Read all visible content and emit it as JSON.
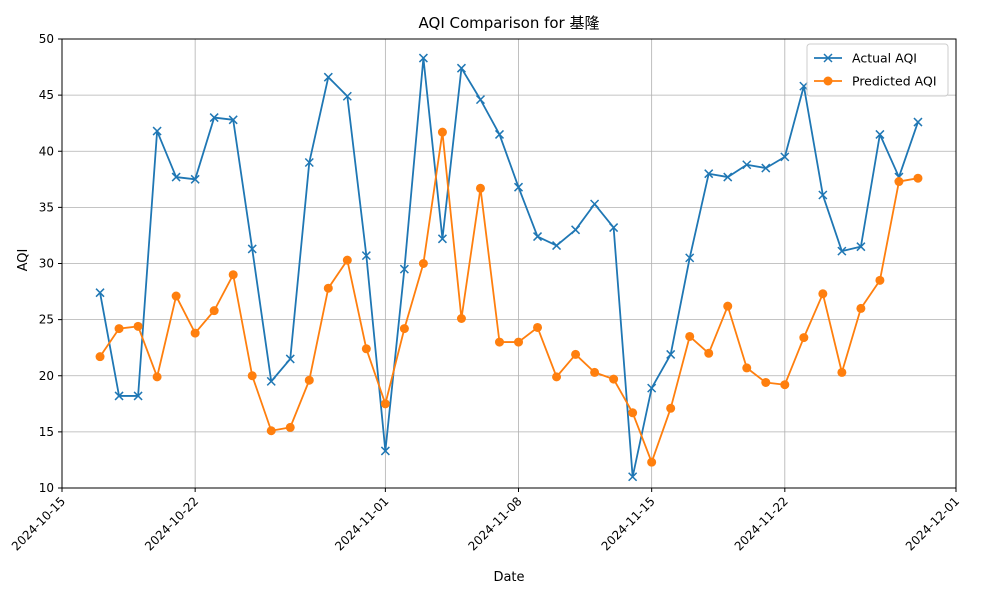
{
  "chart_data": {
    "type": "line",
    "title": "AQI Comparison for 基隆",
    "xlabel": "Date",
    "ylabel": "AQI",
    "xlim": [
      "2024-10-15",
      "2024-12-01"
    ],
    "ylim": [
      10,
      50
    ],
    "x_ticks": [
      "2024-10-15",
      "2024-10-22",
      "2024-11-01",
      "2024-11-08",
      "2024-11-15",
      "2024-11-22",
      "2024-12-01"
    ],
    "y_ticks": [
      10,
      15,
      20,
      25,
      30,
      35,
      40,
      45,
      50
    ],
    "grid": true,
    "legend_position": "upper right",
    "x": [
      "2024-10-17",
      "2024-10-18",
      "2024-10-19",
      "2024-10-20",
      "2024-10-21",
      "2024-10-22",
      "2024-10-23",
      "2024-10-24",
      "2024-10-25",
      "2024-10-26",
      "2024-10-27",
      "2024-10-28",
      "2024-10-29",
      "2024-10-30",
      "2024-10-31",
      "2024-11-01",
      "2024-11-02",
      "2024-11-03",
      "2024-11-04",
      "2024-11-05",
      "2024-11-06",
      "2024-11-07",
      "2024-11-08",
      "2024-11-09",
      "2024-11-10",
      "2024-11-11",
      "2024-11-12",
      "2024-11-13",
      "2024-11-14",
      "2024-11-15",
      "2024-11-16",
      "2024-11-17",
      "2024-11-18",
      "2024-11-19",
      "2024-11-20",
      "2024-11-21",
      "2024-11-22",
      "2024-11-23",
      "2024-11-24",
      "2024-11-25",
      "2024-11-26",
      "2024-11-27",
      "2024-11-28",
      "2024-11-29"
    ],
    "series": [
      {
        "name": "Actual AQI",
        "color": "#1f77b4",
        "marker": "x",
        "values": [
          27.4,
          18.2,
          18.2,
          41.8,
          37.7,
          37.5,
          43.0,
          42.8,
          31.3,
          19.5,
          21.5,
          39.0,
          46.6,
          44.9,
          30.7,
          13.3,
          29.5,
          48.3,
          32.2,
          47.4,
          44.6,
          41.5,
          36.8,
          32.4,
          31.6,
          33.0,
          35.3,
          33.2,
          11.0,
          18.9,
          21.9,
          30.5,
          38.0,
          37.7,
          38.8,
          38.5,
          39.5,
          45.8,
          36.1,
          31.1,
          31.5,
          41.5,
          37.7,
          42.6
        ]
      },
      {
        "name": "Predicted AQI",
        "color": "#ff7f0e",
        "marker": "o",
        "values": [
          21.7,
          24.2,
          24.4,
          19.9,
          27.1,
          23.8,
          25.8,
          29.0,
          20.0,
          15.1,
          15.4,
          19.6,
          27.8,
          30.3,
          22.4,
          17.5,
          24.2,
          30.0,
          41.7,
          25.1,
          36.7,
          23.0,
          23.0,
          24.3,
          19.9,
          21.9,
          20.3,
          19.7,
          16.7,
          12.3,
          17.1,
          23.5,
          22.0,
          26.2,
          20.7,
          19.4,
          19.2,
          23.4,
          27.3,
          20.3,
          26.0,
          28.5,
          37.3,
          37.6
        ]
      }
    ]
  }
}
